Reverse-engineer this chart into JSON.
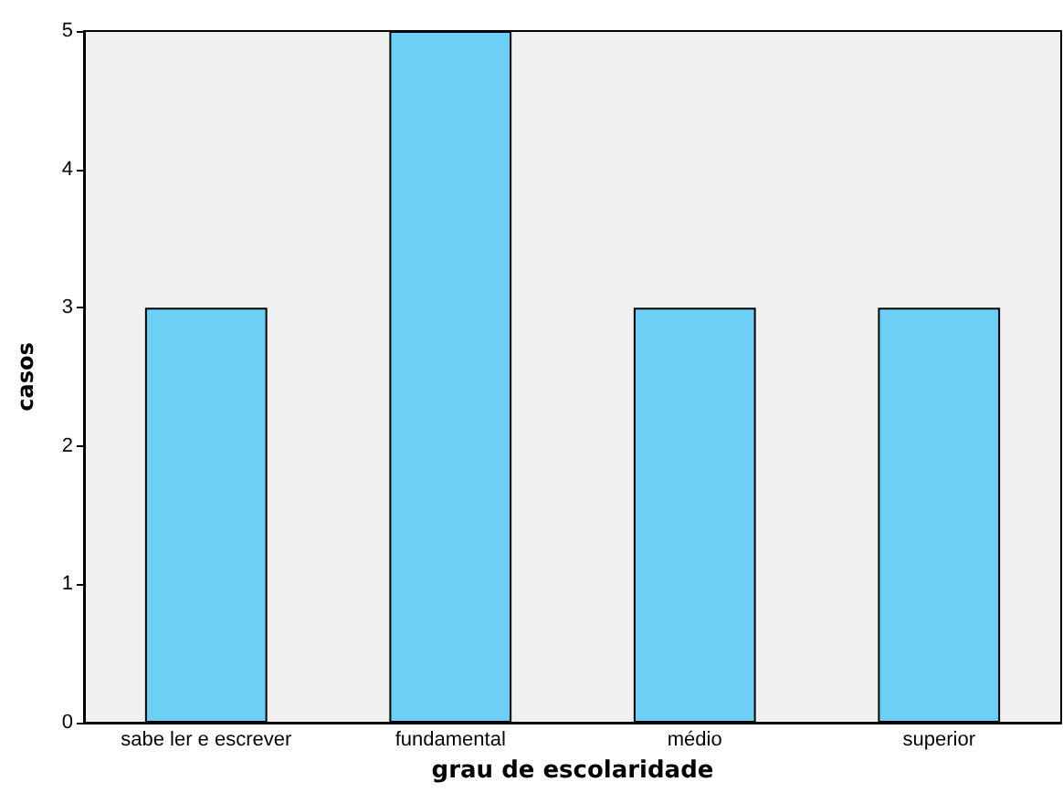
{
  "chart_data": {
    "type": "bar",
    "xlabel": "grau de escolaridade",
    "ylabel": "casos",
    "categories": [
      "sabe ler e escrever",
      "fundamental",
      "médio",
      "superior"
    ],
    "values": [
      3,
      5,
      3,
      3
    ],
    "color": "#6dcff6",
    "ylim": [
      0,
      5
    ],
    "yticks": [
      0,
      1,
      2,
      3,
      4,
      5
    ],
    "grid": false
  }
}
